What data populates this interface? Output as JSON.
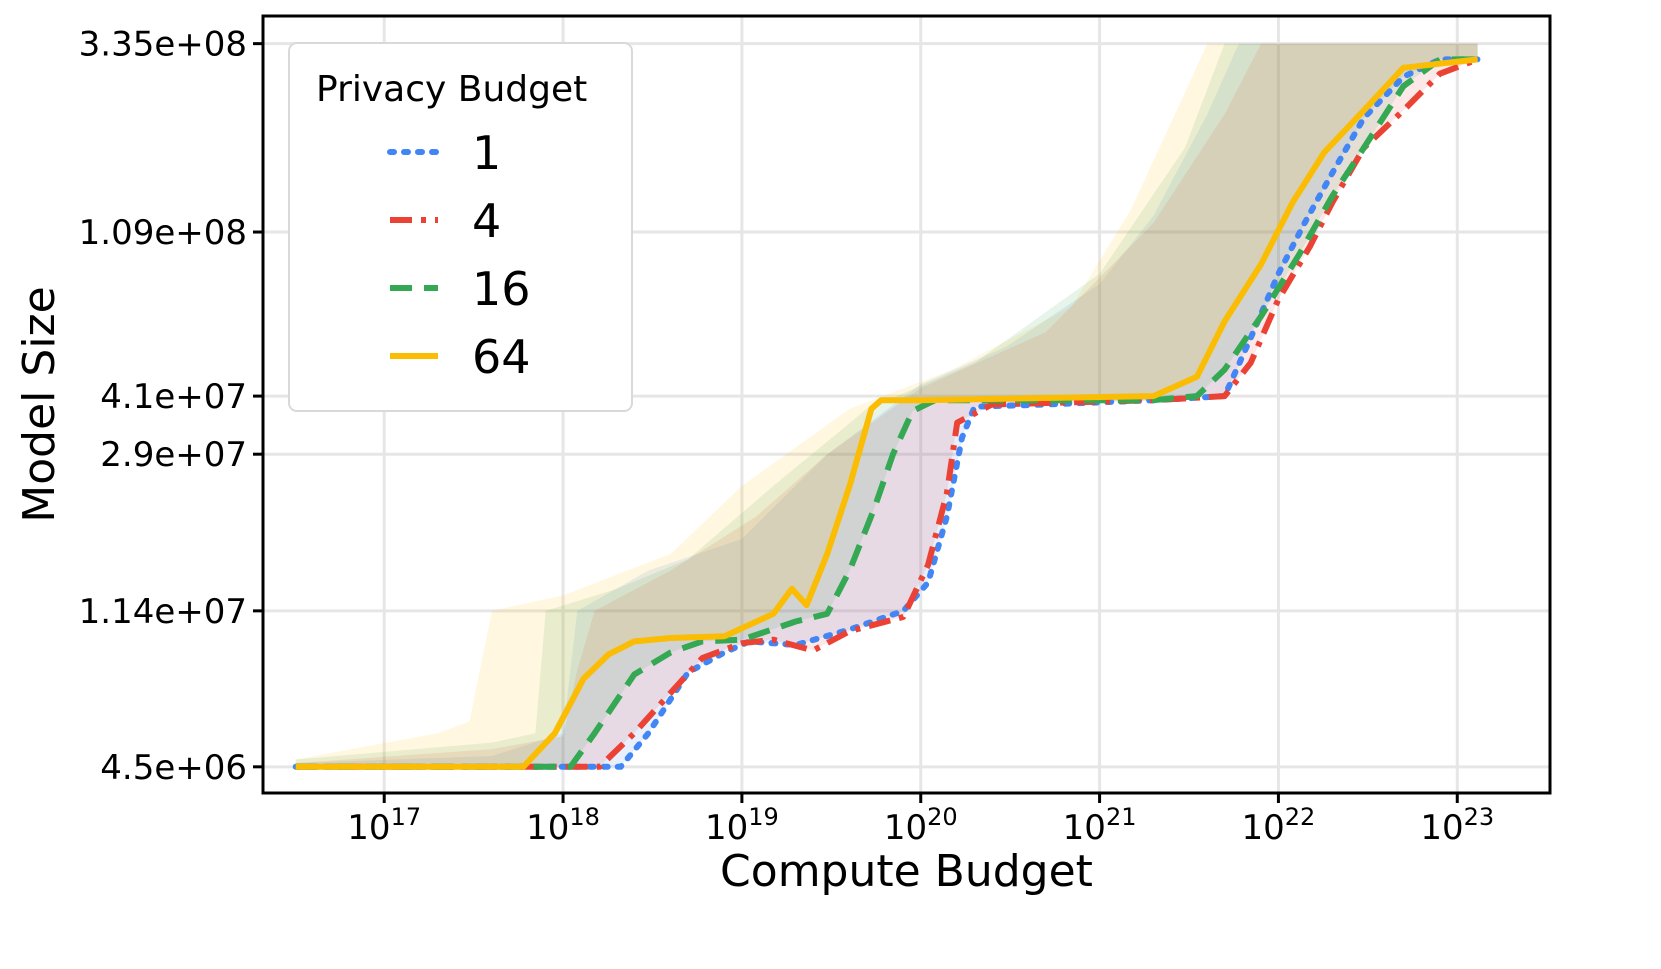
{
  "chart_data": {
    "type": "line",
    "title": "",
    "xlabel": "Compute Budget",
    "ylabel": "Model Size",
    "x_scale": "log",
    "y_scale": "log",
    "xlim": [
      2.1e+16,
      3.3e+23
    ],
    "ylim": [
      3850000.0,
      395000000.0
    ],
    "x_ticks": [
      1e+17,
      1e+18,
      1e+19,
      1e+20,
      1e+21,
      1e+22,
      1e+23
    ],
    "x_tick_labels": [
      {
        "base": "10",
        "exp": "17"
      },
      {
        "base": "10",
        "exp": "18"
      },
      {
        "base": "10",
        "exp": "19"
      },
      {
        "base": "10",
        "exp": "20"
      },
      {
        "base": "10",
        "exp": "21"
      },
      {
        "base": "10",
        "exp": "22"
      },
      {
        "base": "10",
        "exp": "23"
      }
    ],
    "y_ticks": [
      4500000.0,
      11400000.0,
      29000000.0,
      41000000.0,
      109000000.0,
      335000000.0
    ],
    "y_tick_labels": [
      "4.5e+06",
      "1.14e+07",
      "2.9e+07",
      "4.1e+07",
      "1.09e+08",
      "3.35e+08"
    ],
    "grid": true,
    "legend": {
      "title": "Privacy Budget",
      "position": "top-left"
    },
    "series": [
      {
        "name": "1",
        "color": "#4285F4",
        "dash": "dotted",
        "points": [
          [
            3.2e+16,
            4500000.0
          ],
          [
            2.1e+18,
            4500000.0
          ],
          [
            3e+18,
            5500000.0
          ],
          [
            5e+18,
            7900000.0
          ],
          [
            8e+18,
            8900000.0
          ],
          [
            1.1e+19,
            9500000.0
          ],
          [
            2e+19,
            9300000.0
          ],
          [
            4e+19,
            10200000.0
          ],
          [
            8e+19,
            11400000.0
          ],
          [
            1.1e+20,
            13500000.0
          ],
          [
            1.4e+20,
            20000000.0
          ],
          [
            1.7e+20,
            32000000.0
          ],
          [
            2e+20,
            38500000.0
          ],
          [
            5e+20,
            39000000.0
          ],
          [
            2e+21,
            40000000.0
          ],
          [
            5e+21,
            41000000.0
          ],
          [
            7e+21,
            58000000.0
          ],
          [
            1e+22,
            85000000.0
          ],
          [
            1.4e+22,
            115000000.0
          ],
          [
            2e+22,
            155000000.0
          ],
          [
            3e+22,
            215000000.0
          ],
          [
            5e+22,
            275000000.0
          ],
          [
            8e+22,
            305000000.0
          ],
          [
            1.3e+23,
            305000000.0
          ]
        ],
        "band_upper": [
          [
            3.2e+16,
            4600000.0
          ],
          [
            4e+17,
            4800000.0
          ],
          [
            1e+18,
            5500000.0
          ],
          [
            1.2e+18,
            11400000.0
          ],
          [
            3e+18,
            14500000.0
          ],
          [
            1e+19,
            17500000.0
          ],
          [
            3e+19,
            29000000.0
          ],
          [
            1e+20,
            44000000.0
          ],
          [
            3e+20,
            55000000.0
          ],
          [
            1e+21,
            80000000.0
          ],
          [
            2e+21,
            120000000.0
          ],
          [
            4e+21,
            220000000.0
          ],
          [
            6e+21,
            335000000.0
          ],
          [
            1.3e+23,
            335000000.0
          ]
        ]
      },
      {
        "name": "4",
        "color": "#EA4335",
        "dash": "dashdot",
        "points": [
          [
            3.2e+16,
            4500000.0
          ],
          [
            1.6e+18,
            4500000.0
          ],
          [
            2.5e+18,
            5500000.0
          ],
          [
            4e+18,
            7000000.0
          ],
          [
            6e+18,
            8600000.0
          ],
          [
            1e+19,
            9400000.0
          ],
          [
            1.5e+19,
            9600000.0
          ],
          [
            2.5e+19,
            9000000.0
          ],
          [
            4e+19,
            10100000.0
          ],
          [
            8e+19,
            11000000.0
          ],
          [
            1.1e+20,
            15000000.0
          ],
          [
            1.4e+20,
            23000000.0
          ],
          [
            1.6e+20,
            35000000.0
          ],
          [
            2.5e+20,
            39000000.0
          ],
          [
            2e+21,
            40000000.0
          ],
          [
            5e+21,
            41000000.0
          ],
          [
            7e+21,
            50000000.0
          ],
          [
            1e+22,
            73000000.0
          ],
          [
            1.5e+22,
            100000000.0
          ],
          [
            2e+22,
            130000000.0
          ],
          [
            3e+22,
            180000000.0
          ],
          [
            5e+22,
            225000000.0
          ],
          [
            8e+22,
            280000000.0
          ],
          [
            1.3e+23,
            305000000.0
          ]
        ],
        "band_upper": [
          [
            3.2e+16,
            4600000.0
          ],
          [
            4e+17,
            5000000.0
          ],
          [
            1e+18,
            5400000.0
          ],
          [
            1.2e+18,
            8000000.0
          ],
          [
            1.5e+18,
            11400000.0
          ],
          [
            4e+18,
            14500000.0
          ],
          [
            1.2e+19,
            20000000.0
          ],
          [
            3e+19,
            29000000.0
          ],
          [
            1e+20,
            43000000.0
          ],
          [
            5e+20,
            60000000.0
          ],
          [
            2e+21,
            115000000.0
          ],
          [
            5e+21,
            220000000.0
          ],
          [
            8e+21,
            335000000.0
          ],
          [
            1.3e+23,
            335000000.0
          ]
        ]
      },
      {
        "name": "16",
        "color": "#34A853",
        "dash": "dashed",
        "points": [
          [
            3.2e+16,
            4500000.0
          ],
          [
            1.1e+18,
            4500000.0
          ],
          [
            1.5e+18,
            5500000.0
          ],
          [
            2.5e+18,
            7800000.0
          ],
          [
            4e+18,
            8900000.0
          ],
          [
            6e+18,
            9500000.0
          ],
          [
            1e+19,
            9600000.0
          ],
          [
            2e+19,
            10700000.0
          ],
          [
            3e+19,
            11200000.0
          ],
          [
            4e+19,
            14500000.0
          ],
          [
            5.5e+19,
            21000000.0
          ],
          [
            7e+19,
            29000000.0
          ],
          [
            9e+19,
            37500000.0
          ],
          [
            1.2e+20,
            40000000.0
          ],
          [
            2e+21,
            40000000.0
          ],
          [
            3.5e+21,
            41000000.0
          ],
          [
            5e+21,
            48000000.0
          ],
          [
            8e+21,
            66000000.0
          ],
          [
            1.3e+22,
            95000000.0
          ],
          [
            2e+22,
            135000000.0
          ],
          [
            3e+22,
            180000000.0
          ],
          [
            5e+22,
            260000000.0
          ],
          [
            8e+22,
            305000000.0
          ],
          [
            1.3e+23,
            305000000.0
          ]
        ],
        "band_upper": [
          [
            3.2e+16,
            4700000.0
          ],
          [
            4e+17,
            5200000.0
          ],
          [
            7e+17,
            5500000.0
          ],
          [
            8e+17,
            11400000.0
          ],
          [
            2e+18,
            13000000.0
          ],
          [
            5e+18,
            15500000.0
          ],
          [
            1.5e+19,
            24000000.0
          ],
          [
            5e+19,
            38000000.0
          ],
          [
            2e+20,
            50000000.0
          ],
          [
            1e+21,
            85000000.0
          ],
          [
            3e+21,
            180000000.0
          ],
          [
            5e+21,
            335000000.0
          ],
          [
            1.3e+23,
            335000000.0
          ]
        ]
      },
      {
        "name": "64",
        "color": "#FBBC04",
        "dash": "solid",
        "points": [
          [
            3.2e+16,
            4500000.0
          ],
          [
            6e+17,
            4500000.0
          ],
          [
            9e+17,
            5500000.0
          ],
          [
            1.3e+18,
            7600000.0
          ],
          [
            1.8e+18,
            8800000.0
          ],
          [
            2.5e+18,
            9500000.0
          ],
          [
            4e+18,
            9700000.0
          ],
          [
            8e+18,
            9800000.0
          ],
          [
            1.5e+19,
            11200000.0
          ],
          [
            1.9e+19,
            13000000.0
          ],
          [
            2.3e+19,
            11800000.0
          ],
          [
            3e+19,
            16000000.0
          ],
          [
            4e+19,
            24000000.0
          ],
          [
            5.3e+19,
            38000000.0
          ],
          [
            6e+19,
            40000000.0
          ],
          [
            1e+20,
            40000000.0
          ],
          [
            2e+21,
            41000000.0
          ],
          [
            3.5e+21,
            46000000.0
          ],
          [
            5e+21,
            64000000.0
          ],
          [
            8e+21,
            90000000.0
          ],
          [
            1.2e+22,
            130000000.0
          ],
          [
            1.8e+22,
            175000000.0
          ],
          [
            3e+22,
            225000000.0
          ],
          [
            5e+22,
            290000000.0
          ],
          [
            1.3e+23,
            305000000.0
          ]
        ],
        "band_upper": [
          [
            3.2e+16,
            4700000.0
          ],
          [
            2e+17,
            5500000.0
          ],
          [
            3e+17,
            5900000.0
          ],
          [
            4e+17,
            11400000.0
          ],
          [
            1e+18,
            12500000.0
          ],
          [
            4e+18,
            16000000.0
          ],
          [
            1e+19,
            24000000.0
          ],
          [
            4e+19,
            38000000.0
          ],
          [
            1.5e+20,
            48000000.0
          ],
          [
            7e+20,
            70000000.0
          ],
          [
            1.5e+21,
            125000000.0
          ],
          [
            3e+21,
            250000000.0
          ],
          [
            4e+21,
            335000000.0
          ],
          [
            1.3e+23,
            335000000.0
          ]
        ]
      }
    ]
  }
}
